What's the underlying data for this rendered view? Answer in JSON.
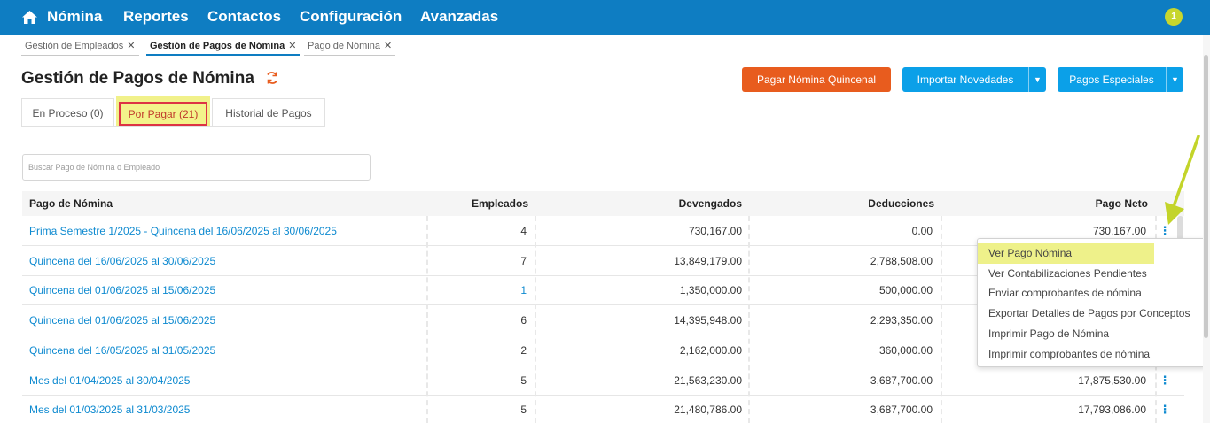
{
  "nav": {
    "items": [
      "Nómina",
      "Reportes",
      "Contactos",
      "Configuración",
      "Avanzadas"
    ],
    "notification_count": "1"
  },
  "breadcrumbs": [
    {
      "label": "Gestión de Empleados",
      "close": "✕"
    },
    {
      "label": "Gestión de Pagos de Nómina",
      "close": "✕"
    },
    {
      "label": "Pago de Nómina",
      "close": "✕"
    }
  ],
  "page": {
    "title": "Gestión de Pagos de Nómina"
  },
  "actions": {
    "pagar": "Pagar Nómina Quincenal",
    "importar": "Importar Novedades",
    "especiales": "Pagos Especiales"
  },
  "tabs": [
    "En Proceso (0)",
    "Por Pagar (21)",
    "Historial de Pagos"
  ],
  "search": {
    "placeholder": "Buscar Pago de Nómina o Empleado"
  },
  "table": {
    "headers": [
      "Pago de Nómina",
      "Empleados",
      "Devengados",
      "Deducciones",
      "Pago Neto"
    ],
    "rows": [
      {
        "name": "Prima Semestre 1/2025 - Quincena del 16/06/2025 al 30/06/2025",
        "empleados": "4",
        "devengados": "730,167.00",
        "deducciones": "0.00",
        "neto": "730,167.00"
      },
      {
        "name": "Quincena del 16/06/2025 al 30/06/2025",
        "empleados": "7",
        "devengados": "13,849,179.00",
        "deducciones": "2,788,508.00",
        "neto": ""
      },
      {
        "name": "Quincena del 01/06/2025 al 15/06/2025",
        "empleados": "1",
        "devengados": "1,350,000.00",
        "deducciones": "500,000.00",
        "neto": ""
      },
      {
        "name": "Quincena del 01/06/2025 al 15/06/2025",
        "empleados": "6",
        "devengados": "14,395,948.00",
        "deducciones": "2,293,350.00",
        "neto": ""
      },
      {
        "name": "Quincena del 16/05/2025 al 31/05/2025",
        "empleados": "2",
        "devengados": "2,162,000.00",
        "deducciones": "360,000.00",
        "neto": ""
      },
      {
        "name": "Mes del 01/04/2025 al 30/04/2025",
        "empleados": "5",
        "devengados": "21,563,230.00",
        "deducciones": "3,687,700.00",
        "neto": "17,875,530.00"
      },
      {
        "name": "Mes del 01/03/2025 al 31/03/2025",
        "empleados": "5",
        "devengados": "21,480,786.00",
        "deducciones": "3,687,700.00",
        "neto": "17,793,086.00"
      }
    ]
  },
  "menu": {
    "items": [
      "Ver Pago Nómina",
      "Ver Contabilizaciones Pendientes",
      "Enviar comprobantes de nómina",
      "Exportar Detalles de Pagos por Conceptos",
      "Imprimir Pago de Nómina",
      "Imprimir comprobantes de nómina"
    ]
  },
  "colors": {
    "topbar": "#0e7dc2",
    "orange_button": "#e85c1e",
    "blue_button": "#0ba0e8",
    "link": "#0e8ad0",
    "highlight": "#f1f18a",
    "annotation_arrow": "#c3d42a"
  }
}
